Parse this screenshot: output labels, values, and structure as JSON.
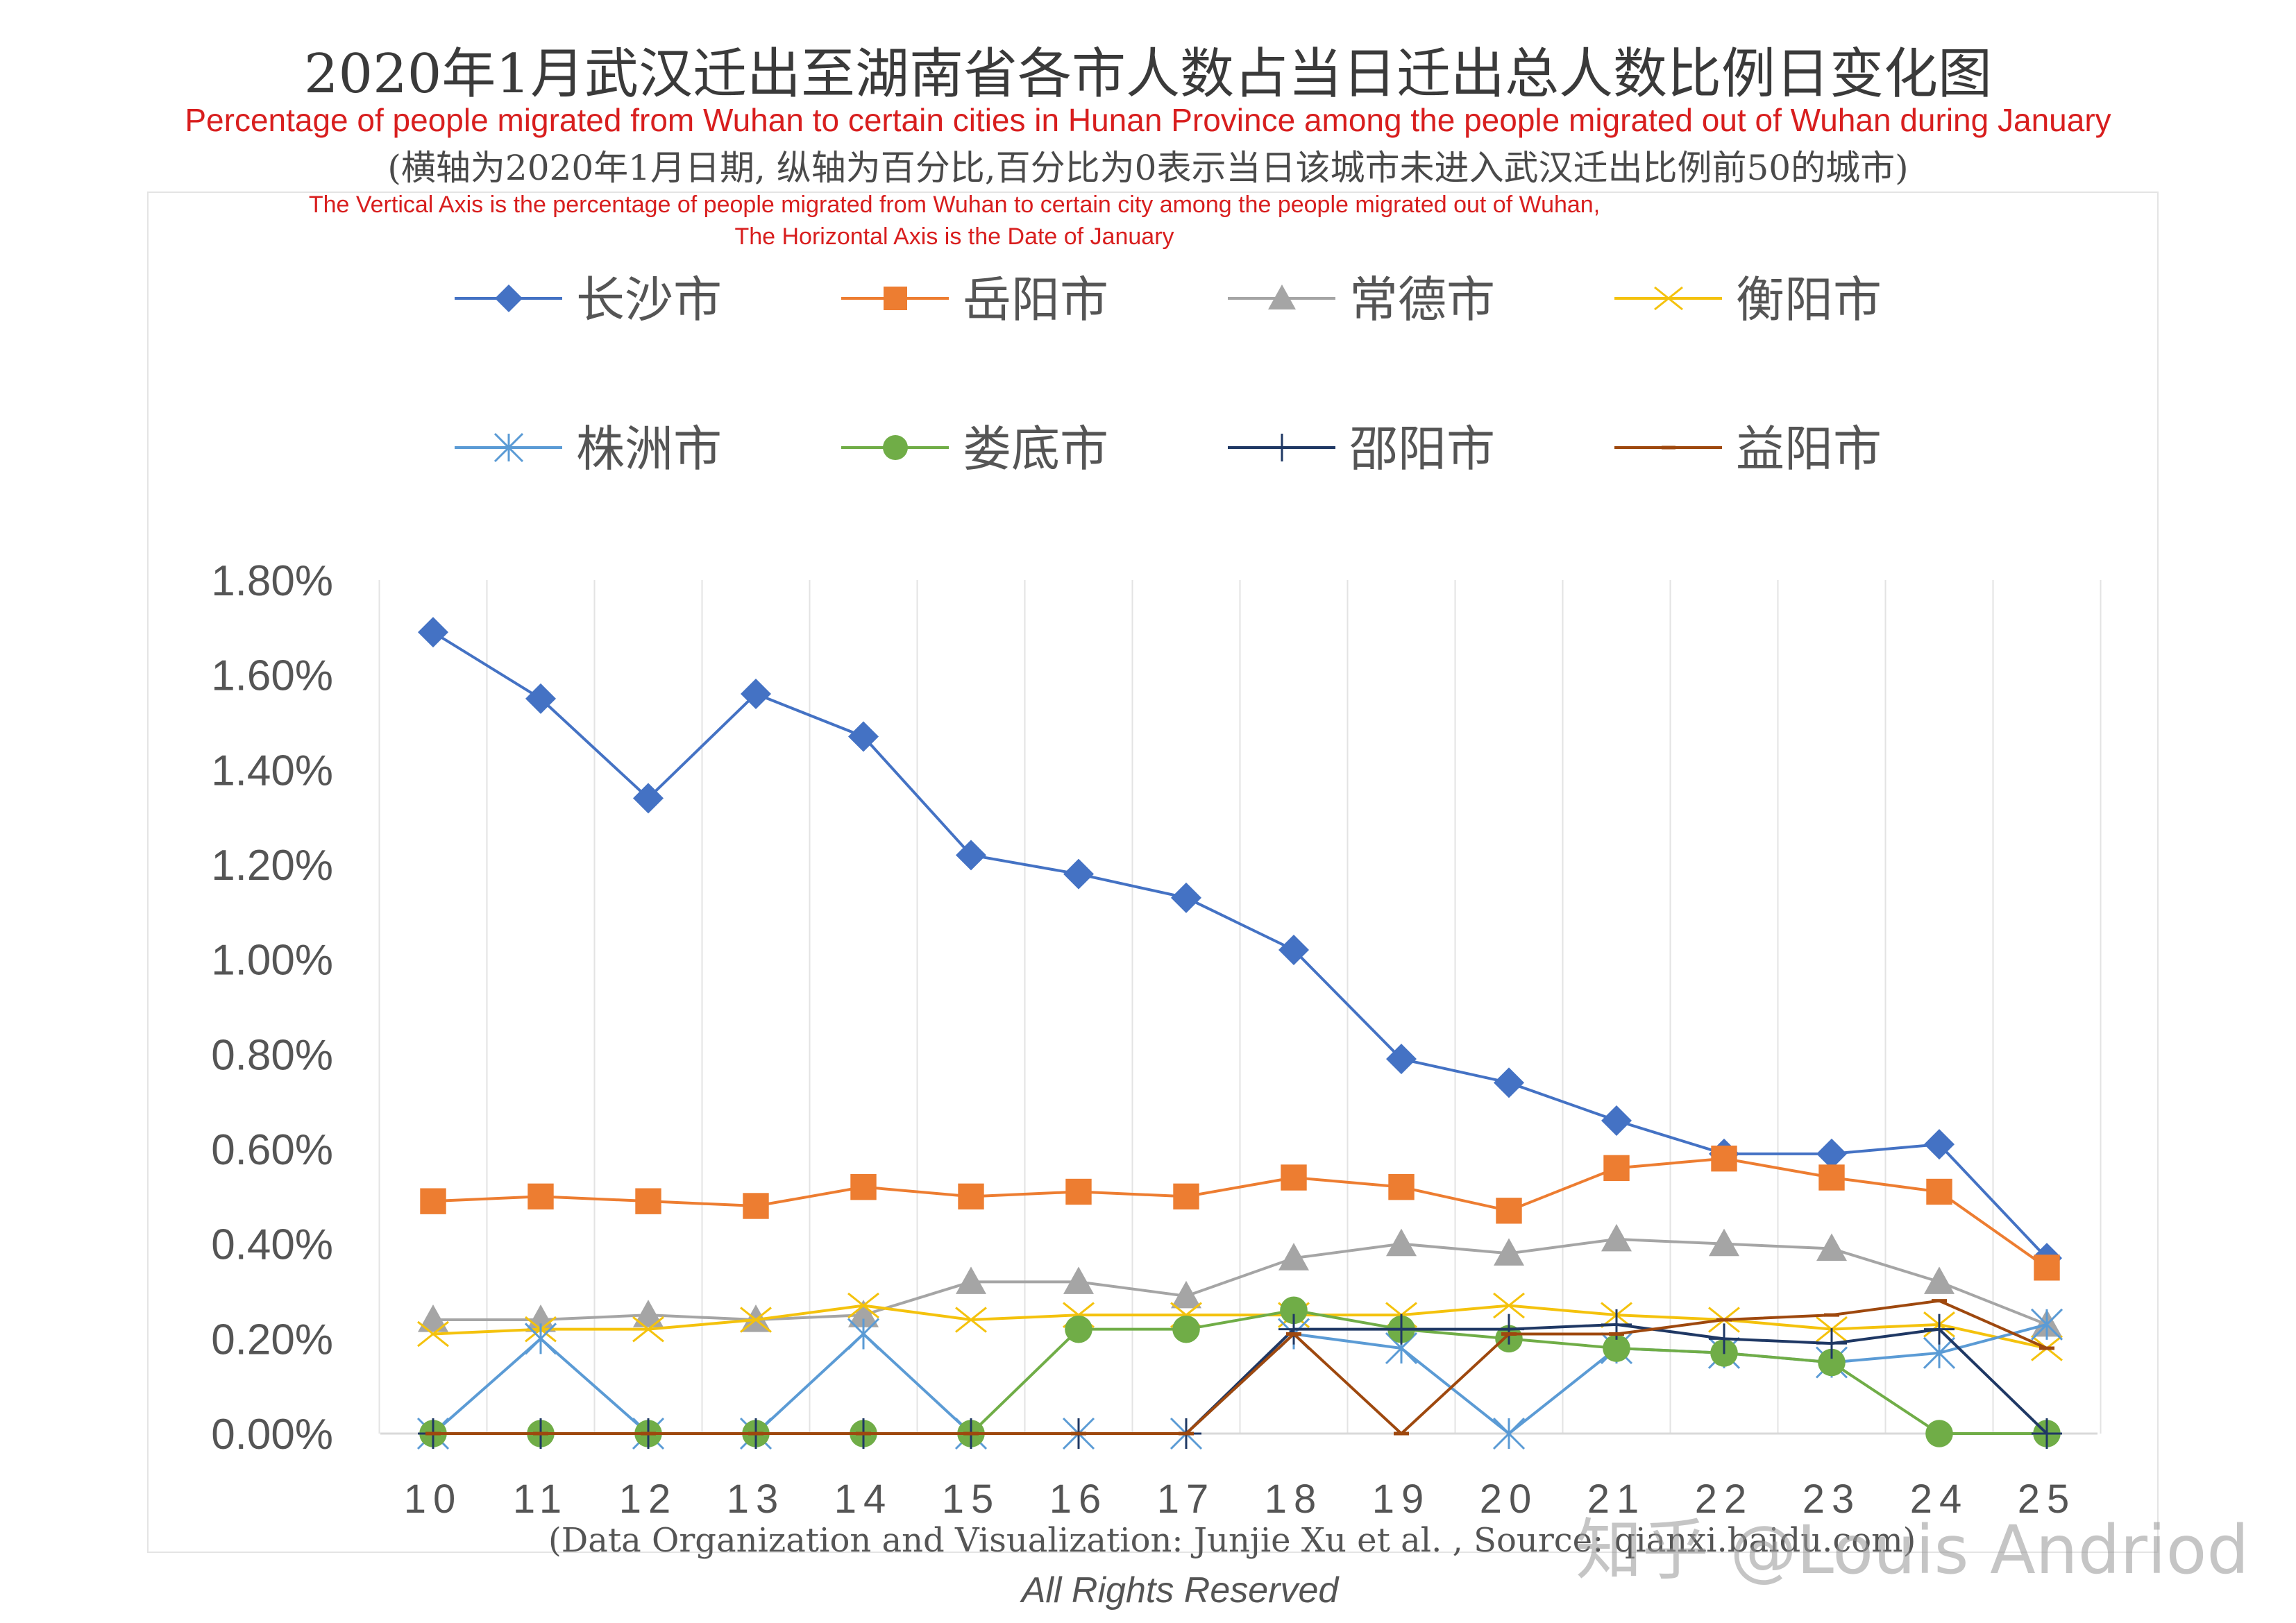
{
  "title_zh": "2020年1月武汉迁出至湖南省各市人数占当日迁出总人数比例日变化图",
  "title_en": "Percentage of people migrated from Wuhan to certain cities in Hunan Province among the people migrated out of Wuhan during January",
  "subtitle_zh": "(横轴为2020年1月日期, 纵轴为百分比,百分比为0表示当日该城市未进入武汉迁出比例前50的城市)",
  "axis_note_line1": "The Vertical Axis is the percentage of people migrated from Wuhan to certain city  among the people migrated out of Wuhan,",
  "axis_note_line2": "The Horizontal Axis is the Date of January",
  "credit": "(Data Organization and Visualization: Junjie Xu et al. , Source: qianxi.baidu.com)",
  "rights": "All Rights Reserved",
  "watermark": "知乎 @Louis Andriod",
  "chart_data": {
    "type": "line",
    "x": [
      10,
      11,
      12,
      13,
      14,
      15,
      16,
      17,
      18,
      19,
      20,
      21,
      22,
      23,
      24,
      25
    ],
    "ylim": [
      0,
      1.8
    ],
    "yticks": [
      "0.00%",
      "0.20%",
      "0.40%",
      "0.60%",
      "0.80%",
      "1.00%",
      "1.20%",
      "1.40%",
      "1.60%",
      "1.80%"
    ],
    "grid": "vertical",
    "legend_position": "top",
    "series": [
      {
        "name": "长沙市",
        "color": "#4472c4",
        "marker": "diamond",
        "values": [
          1.69,
          1.55,
          1.34,
          1.56,
          1.47,
          1.22,
          1.18,
          1.13,
          1.02,
          0.79,
          0.74,
          0.66,
          0.59,
          0.59,
          0.61,
          0.37
        ]
      },
      {
        "name": "岳阳市",
        "color": "#ed7d31",
        "marker": "square",
        "values": [
          0.49,
          0.5,
          0.49,
          0.48,
          0.52,
          0.5,
          0.51,
          0.5,
          0.54,
          0.52,
          0.47,
          0.56,
          0.58,
          0.54,
          0.51,
          0.35
        ]
      },
      {
        "name": "常德市",
        "color": "#a5a5a5",
        "marker": "triangle",
        "values": [
          0.24,
          0.24,
          0.25,
          0.24,
          0.25,
          0.32,
          0.32,
          0.29,
          0.37,
          0.4,
          0.38,
          0.41,
          0.4,
          0.39,
          0.32,
          0.23
        ]
      },
      {
        "name": "衡阳市",
        "color": "#f4c20d",
        "marker": "x",
        "values": [
          0.21,
          0.22,
          0.22,
          0.24,
          0.27,
          0.24,
          0.25,
          0.25,
          0.25,
          0.25,
          0.27,
          0.25,
          0.24,
          0.22,
          0.23,
          0.18
        ]
      },
      {
        "name": "株洲市",
        "color": "#5b9bd5",
        "marker": "star",
        "values": [
          0,
          0.2,
          0,
          0,
          0.21,
          0,
          0,
          0,
          0.21,
          0.18,
          0,
          0.18,
          0.17,
          0.15,
          0.17,
          0.23
        ]
      },
      {
        "name": "娄底市",
        "color": "#70ad47",
        "marker": "circle",
        "values": [
          0,
          0,
          0,
          0,
          0,
          0,
          0.22,
          0.22,
          0.26,
          0.22,
          0.2,
          0.18,
          0.17,
          0.15,
          0,
          0
        ]
      },
      {
        "name": "邵阳市",
        "color": "#1f3864",
        "marker": "plus",
        "values": [
          0,
          0,
          0,
          0,
          0,
          0,
          0,
          0,
          0.22,
          0.22,
          0.22,
          0.23,
          0.2,
          0.19,
          0.22,
          0
        ]
      },
      {
        "name": "益阳市",
        "color": "#9e480e",
        "marker": "dash",
        "values": [
          0,
          0,
          0,
          0,
          0,
          0,
          0,
          0,
          0.21,
          0,
          0.21,
          0.21,
          0.24,
          0.25,
          0.28,
          0.18
        ]
      }
    ]
  }
}
